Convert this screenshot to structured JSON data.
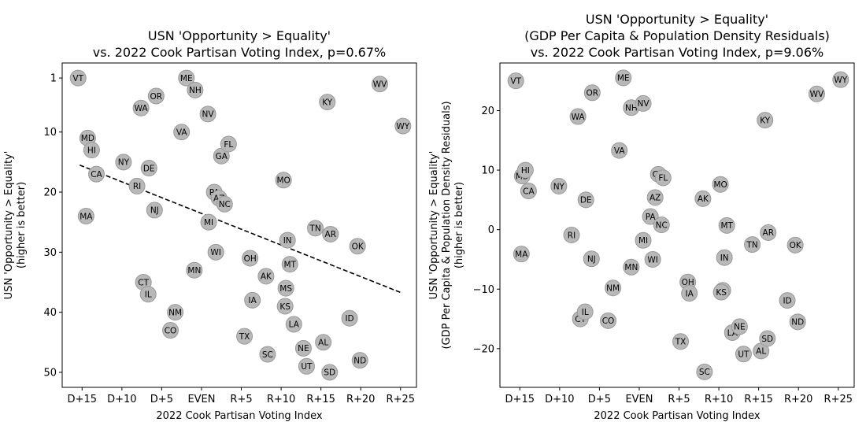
{
  "chart_data": [
    {
      "type": "scatter",
      "title": [
        "USN 'Opportunity > Equality'",
        "vs. 2022 Cook Partisan Voting Index, p=0.67%"
      ],
      "xlabel": "2022 Cook Partisan Voting Index",
      "ylabel": [
        "USN 'Opportunity > Equality'",
        "(higher is better)"
      ],
      "xlim": [
        -17.5,
        27
      ],
      "ylim": [
        52.5,
        -1.5
      ],
      "y_inverted": true,
      "xticks": [
        {
          "v": -15,
          "label": "D+15"
        },
        {
          "v": -10,
          "label": "D+10"
        },
        {
          "v": -5,
          "label": "D+5"
        },
        {
          "v": 0,
          "label": "EVEN"
        },
        {
          "v": 5,
          "label": "R+5"
        },
        {
          "v": 10,
          "label": "R+10"
        },
        {
          "v": 15,
          "label": "R+15"
        },
        {
          "v": 20,
          "label": "R+20"
        },
        {
          "v": 25,
          "label": "R+25"
        }
      ],
      "yticks": [
        {
          "v": 1,
          "label": "1"
        },
        {
          "v": 10,
          "label": "10"
        },
        {
          "v": 20,
          "label": "20"
        },
        {
          "v": 30,
          "label": "30"
        },
        {
          "v": 40,
          "label": "40"
        },
        {
          "v": 50,
          "label": "50"
        }
      ],
      "trendline": {
        "x": [
          -15.3,
          25
        ],
        "y": [
          15.5,
          36.7
        ],
        "style": "dashed"
      },
      "points": [
        {
          "label": "VT",
          "x": -15.5,
          "y": 1
        },
        {
          "label": "MD",
          "x": -14.3,
          "y": 11
        },
        {
          "label": "HI",
          "x": -13.8,
          "y": 13
        },
        {
          "label": "CA",
          "x": -13.2,
          "y": 17
        },
        {
          "label": "MA",
          "x": -14.5,
          "y": 24
        },
        {
          "label": "NY",
          "x": -9.8,
          "y": 15
        },
        {
          "label": "RI",
          "x": -8.1,
          "y": 19
        },
        {
          "label": "DE",
          "x": -6.6,
          "y": 16
        },
        {
          "label": "NJ",
          "x": -5.9,
          "y": 23
        },
        {
          "label": "WA",
          "x": -7.6,
          "y": 6
        },
        {
          "label": "OR",
          "x": -5.7,
          "y": 4
        },
        {
          "label": "CT",
          "x": -7.3,
          "y": 35
        },
        {
          "label": "IL",
          "x": -6.7,
          "y": 37
        },
        {
          "label": "NM",
          "x": -3.3,
          "y": 40
        },
        {
          "label": "CO",
          "x": -3.9,
          "y": 43
        },
        {
          "label": "VA",
          "x": -2.5,
          "y": 10
        },
        {
          "label": "ME",
          "x": -1.9,
          "y": 1
        },
        {
          "label": "NH",
          "x": -0.8,
          "y": 3
        },
        {
          "label": "MN",
          "x": -0.9,
          "y": 33
        },
        {
          "label": "NV",
          "x": 0.8,
          "y": 7
        },
        {
          "label": "MI",
          "x": 0.9,
          "y": 25
        },
        {
          "label": "PA",
          "x": 1.6,
          "y": 20
        },
        {
          "label": "AZ",
          "x": 2.2,
          "y": 21
        },
        {
          "label": "NC",
          "x": 2.9,
          "y": 22
        },
        {
          "label": "GA",
          "x": 2.5,
          "y": 14
        },
        {
          "label": "FL",
          "x": 3.4,
          "y": 12
        },
        {
          "label": "WI",
          "x": 1.8,
          "y": 30
        },
        {
          "label": "TX",
          "x": 5.4,
          "y": 44
        },
        {
          "label": "OH",
          "x": 6.1,
          "y": 31
        },
        {
          "label": "IA",
          "x": 6.4,
          "y": 38
        },
        {
          "label": "AK",
          "x": 8.1,
          "y": 34
        },
        {
          "label": "SC",
          "x": 8.3,
          "y": 47
        },
        {
          "label": "MO",
          "x": 10.3,
          "y": 18
        },
        {
          "label": "IN",
          "x": 10.8,
          "y": 28
        },
        {
          "label": "MT",
          "x": 11.1,
          "y": 32
        },
        {
          "label": "MS",
          "x": 10.6,
          "y": 36
        },
        {
          "label": "KS",
          "x": 10.5,
          "y": 39
        },
        {
          "label": "LA",
          "x": 11.6,
          "y": 42
        },
        {
          "label": "NE",
          "x": 12.8,
          "y": 46
        },
        {
          "label": "UT",
          "x": 13.2,
          "y": 49
        },
        {
          "label": "TN",
          "x": 14.3,
          "y": 26
        },
        {
          "label": "AL",
          "x": 15.3,
          "y": 45
        },
        {
          "label": "KY",
          "x": 15.8,
          "y": 5
        },
        {
          "label": "AR",
          "x": 16.2,
          "y": 27
        },
        {
          "label": "SD",
          "x": 16.1,
          "y": 50
        },
        {
          "label": "ID",
          "x": 18.6,
          "y": 41
        },
        {
          "label": "OK",
          "x": 19.6,
          "y": 29
        },
        {
          "label": "ND",
          "x": 19.9,
          "y": 48
        },
        {
          "label": "WV",
          "x": 22.4,
          "y": 2
        },
        {
          "label": "WY",
          "x": 25.3,
          "y": 9
        }
      ]
    },
    {
      "type": "scatter",
      "title": [
        "USN 'Opportunity > Equality'",
        "(GDP Per Capita & Population Density Residuals)",
        "vs. 2022 Cook Partisan Voting Index, p=9.06%"
      ],
      "xlabel": "2022 Cook Partisan Voting Index",
      "ylabel": [
        "USN 'Opportunity > Equality'",
        "(GDP Per Capita & Population Density Residuals)",
        "(higher is better)"
      ],
      "xlim": [
        -17.5,
        27
      ],
      "ylim": [
        -26.5,
        28
      ],
      "xticks": [
        {
          "v": -15,
          "label": "D+15"
        },
        {
          "v": -10,
          "label": "D+10"
        },
        {
          "v": -5,
          "label": "D+5"
        },
        {
          "v": 0,
          "label": "EVEN"
        },
        {
          "v": 5,
          "label": "R+5"
        },
        {
          "v": 10,
          "label": "R+10"
        },
        {
          "v": 15,
          "label": "R+15"
        },
        {
          "v": 20,
          "label": "R+20"
        },
        {
          "v": 25,
          "label": "R+25"
        }
      ],
      "yticks": [
        {
          "v": 20,
          "label": "20"
        },
        {
          "v": 10,
          "label": "10"
        },
        {
          "v": 0,
          "label": "0"
        },
        {
          "v": -10,
          "label": "−10"
        },
        {
          "v": -20,
          "label": "−20"
        }
      ],
      "points": [
        {
          "label": "VT",
          "x": -15.5,
          "y": 25
        },
        {
          "label": "MD",
          "x": -14.7,
          "y": 9
        },
        {
          "label": "HI",
          "x": -14.3,
          "y": 10
        },
        {
          "label": "CA",
          "x": -13.9,
          "y": 6.5
        },
        {
          "label": "MA",
          "x": -14.8,
          "y": -4.1
        },
        {
          "label": "NY",
          "x": -10.1,
          "y": 7.3
        },
        {
          "label": "RI",
          "x": -8.5,
          "y": -0.9
        },
        {
          "label": "DE",
          "x": -6.7,
          "y": 5
        },
        {
          "label": "NJ",
          "x": -6.0,
          "y": -4.9
        },
        {
          "label": "WA",
          "x": -7.7,
          "y": 19
        },
        {
          "label": "OR",
          "x": -5.9,
          "y": 23
        },
        {
          "label": "CT",
          "x": -7.4,
          "y": -15
        },
        {
          "label": "IL",
          "x": -6.8,
          "y": -13.8
        },
        {
          "label": "NM",
          "x": -3.3,
          "y": -9.8
        },
        {
          "label": "CO",
          "x": -3.9,
          "y": -15.3
        },
        {
          "label": "VA",
          "x": -2.5,
          "y": 13.3
        },
        {
          "label": "ME",
          "x": -2.0,
          "y": 25.5
        },
        {
          "label": "NH",
          "x": -1.0,
          "y": 20.5
        },
        {
          "label": "MN",
          "x": -1.0,
          "y": -6.3
        },
        {
          "label": "NV",
          "x": 0.5,
          "y": 21.2
        },
        {
          "label": "MI",
          "x": 0.5,
          "y": -1.8
        },
        {
          "label": "PA",
          "x": 1.4,
          "y": 2.2
        },
        {
          "label": "AZ",
          "x": 2.0,
          "y": 5.4
        },
        {
          "label": "NC",
          "x": 2.8,
          "y": 0.8
        },
        {
          "label": "GA",
          "x": 2.4,
          "y": 9.3
        },
        {
          "label": "FL",
          "x": 3.0,
          "y": 8.7
        },
        {
          "label": "WI",
          "x": 1.7,
          "y": -5.0
        },
        {
          "label": "TX",
          "x": 5.2,
          "y": -18.8
        },
        {
          "label": "OH",
          "x": 6.1,
          "y": -8.8
        },
        {
          "label": "IA",
          "x": 6.3,
          "y": -10.7
        },
        {
          "label": "AK",
          "x": 8.0,
          "y": 5.2
        },
        {
          "label": "SC",
          "x": 8.2,
          "y": -23.9
        },
        {
          "label": "MO",
          "x": 10.2,
          "y": 7.6
        },
        {
          "label": "IN",
          "x": 10.7,
          "y": -4.7
        },
        {
          "label": "MT",
          "x": 11.0,
          "y": 0.7
        },
        {
          "label": "MS",
          "x": 10.5,
          "y": -10.2
        },
        {
          "label": "KS",
          "x": 10.3,
          "y": -10.5
        },
        {
          "label": "LA",
          "x": 11.7,
          "y": -17.3
        },
        {
          "label": "NE",
          "x": 12.6,
          "y": -16.3
        },
        {
          "label": "UT",
          "x": 13.1,
          "y": -20.9
        },
        {
          "label": "TN",
          "x": 14.2,
          "y": -2.5
        },
        {
          "label": "AL",
          "x": 15.3,
          "y": -20.4
        },
        {
          "label": "KY",
          "x": 15.8,
          "y": 18.4
        },
        {
          "label": "AR",
          "x": 16.2,
          "y": -0.5
        },
        {
          "label": "SD",
          "x": 16.1,
          "y": -18.3
        },
        {
          "label": "ID",
          "x": 18.6,
          "y": -11.9
        },
        {
          "label": "OK",
          "x": 19.6,
          "y": -2.6
        },
        {
          "label": "ND",
          "x": 19.9,
          "y": -15.5
        },
        {
          "label": "WV",
          "x": 22.3,
          "y": 22.8
        },
        {
          "label": "WY",
          "x": 25.3,
          "y": 25.2
        }
      ]
    }
  ]
}
